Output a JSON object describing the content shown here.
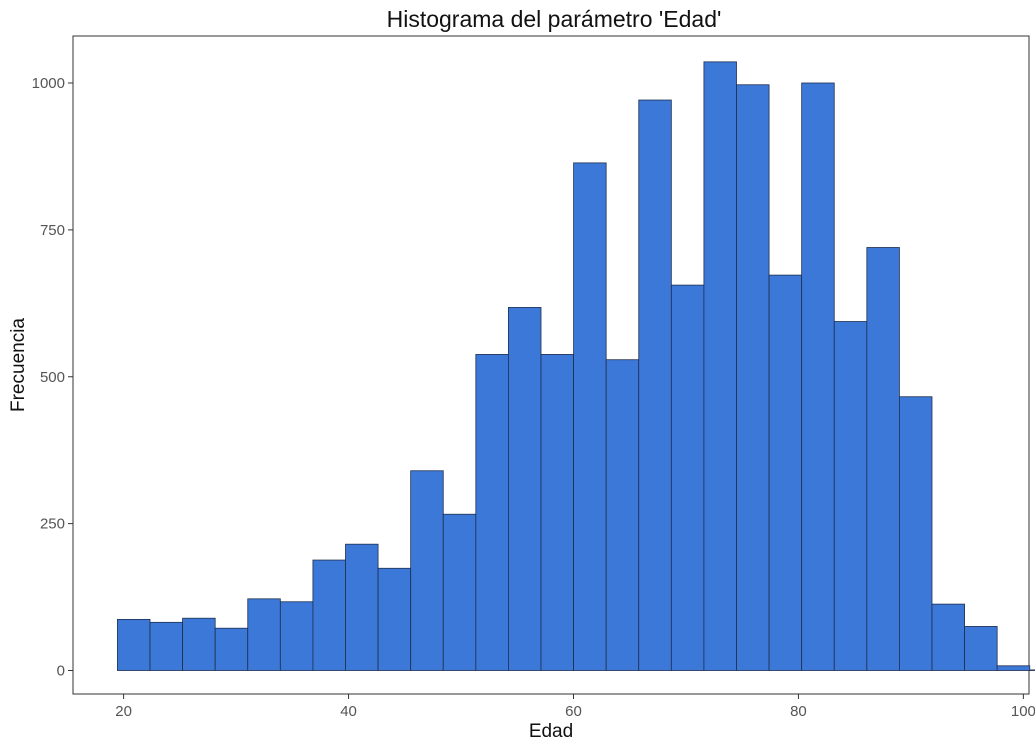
{
  "chart_data": {
    "type": "bar",
    "title": "Histograma del parámetro 'Edad'",
    "xlabel": "Edad",
    "ylabel": "Frecuencia",
    "bin_width": 2.897,
    "bin_start": 19.45,
    "values": [
      87,
      82,
      89,
      72,
      122,
      117,
      188,
      215,
      174,
      340,
      266,
      538,
      618,
      538,
      864,
      529,
      971,
      656,
      1036,
      997,
      673,
      1000,
      594,
      720,
      466,
      113,
      75,
      8,
      1,
      1
    ],
    "xlim": [
      15.5,
      100.5
    ],
    "ylim": [
      -40,
      1080
    ],
    "x_ticks": [
      20,
      40,
      60,
      80,
      100
    ],
    "y_ticks": [
      0,
      250,
      500,
      750,
      1000
    ],
    "bar_color": "#3c78d8",
    "grid": false,
    "legend": "none"
  }
}
